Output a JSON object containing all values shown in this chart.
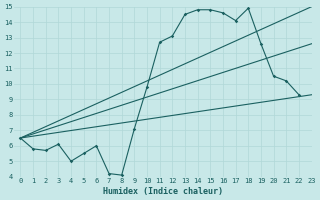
{
  "xlabel": "Humidex (Indice chaleur)",
  "background_color": "#c8e8e8",
  "grid_color": "#b0d8d8",
  "line_color": "#1a6060",
  "ylim": [
    4,
    15
  ],
  "xlim": [
    -0.5,
    23
  ],
  "yticks": [
    4,
    5,
    6,
    7,
    8,
    9,
    10,
    11,
    12,
    13,
    14,
    15
  ],
  "xticks": [
    0,
    1,
    2,
    3,
    4,
    5,
    6,
    7,
    8,
    9,
    10,
    11,
    12,
    13,
    14,
    15,
    16,
    17,
    18,
    19,
    20,
    21,
    22,
    23
  ],
  "jagged_x": [
    0,
    1,
    2,
    3,
    4,
    5,
    6,
    7,
    8,
    9,
    10,
    11,
    12,
    13,
    14,
    15,
    16,
    17,
    18,
    19,
    20,
    21,
    22
  ],
  "jagged_y": [
    6.5,
    5.8,
    5.7,
    6.1,
    5.0,
    5.5,
    6.0,
    4.2,
    4.1,
    7.1,
    9.8,
    12.7,
    13.1,
    14.5,
    14.8,
    14.8,
    14.6,
    14.1,
    14.9,
    12.6,
    10.5,
    10.2,
    9.3
  ],
  "straight_lines": [
    [
      6.5,
      15.0
    ],
    [
      6.5,
      12.6
    ],
    [
      6.5,
      9.3
    ]
  ]
}
